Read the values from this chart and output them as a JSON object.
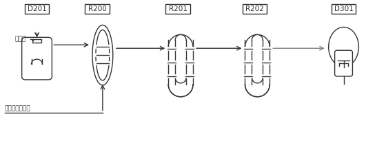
{
  "labels": [
    "D201",
    "R200",
    "R201",
    "R202",
    "D301"
  ],
  "text_catalyst": "催化剂",
  "text_feed": "丙烯单体、氢气",
  "bg_color": "#ffffff",
  "line_color": "#333333"
}
